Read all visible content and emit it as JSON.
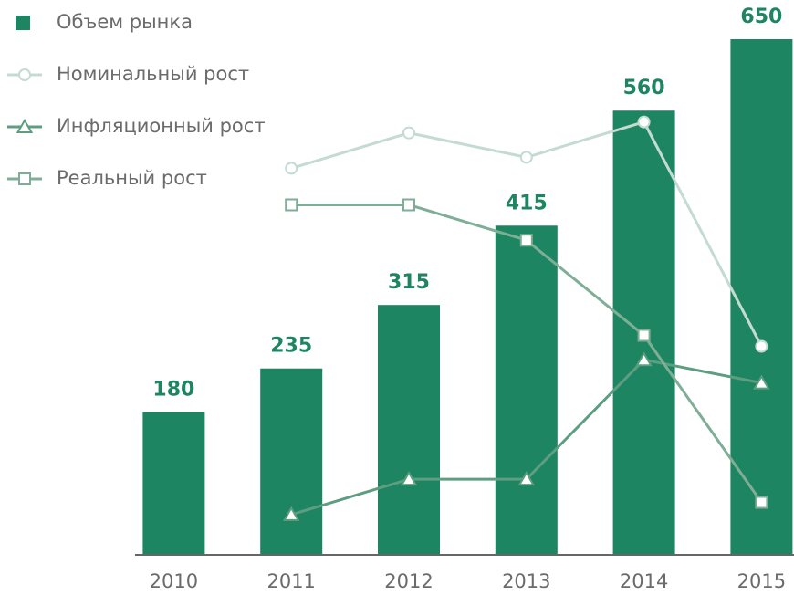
{
  "chart_data": {
    "type": "bar",
    "categories": [
      "2010",
      "2011",
      "2012",
      "2013",
      "2014",
      "2015"
    ],
    "ylim": [
      0,
      650
    ],
    "y2lim": [
      -1,
      44.5
    ],
    "series": [
      {
        "name": "Объем рынка",
        "type": "bar",
        "color": "#1e8562",
        "values": [
          180,
          235,
          315,
          415,
          560,
          650
        ]
      },
      {
        "name": "Номинальный рост",
        "type": "line",
        "axis": "y2",
        "marker": "circle",
        "color": "#c3dbd0",
        "values": [
          null,
          30.7,
          33.6,
          31.6,
          34.5,
          16.1
        ]
      },
      {
        "name": "Инфляционный рост",
        "type": "line",
        "axis": "y2",
        "marker": "triangle",
        "color": "#5e9e80",
        "values": [
          null,
          2.3,
          5.2,
          5.2,
          15.0,
          13.1
        ]
      },
      {
        "name": "Реальный рост",
        "type": "line",
        "axis": "y2",
        "marker": "square",
        "color": "#7fae96",
        "values": [
          null,
          27.7,
          27.7,
          24.8,
          17.0,
          3.3
        ]
      }
    ]
  }
}
